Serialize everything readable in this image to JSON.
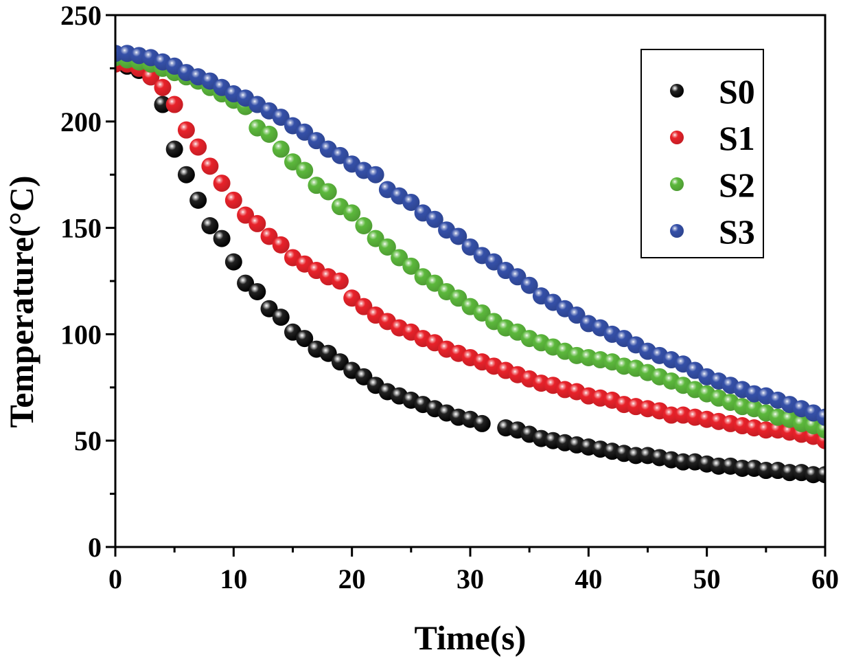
{
  "chart_data": {
    "type": "scatter",
    "title": "",
    "xlabel": "Time(s)",
    "ylabel": "Temperature(°C)",
    "xlim": [
      0,
      60
    ],
    "ylim": [
      0,
      250
    ],
    "xticks": [
      0,
      10,
      20,
      30,
      40,
      50,
      60
    ],
    "xticks_minor": [
      5,
      15,
      25,
      35,
      45,
      55
    ],
    "yticks": [
      0,
      50,
      100,
      150,
      200,
      250
    ],
    "yticks_minor": [
      25,
      75,
      125,
      175,
      225
    ],
    "grid": false,
    "legend_position": "top-right",
    "series": [
      {
        "name": "S0",
        "color": "#000000",
        "x": [
          0,
          1,
          2,
          3,
          4,
          5,
          6,
          7,
          8,
          9,
          10,
          11,
          12,
          13,
          14,
          15,
          16,
          17,
          18,
          19,
          20,
          21,
          22,
          23,
          24,
          25,
          26,
          27,
          28,
          29,
          30,
          31,
          33,
          34,
          35,
          36,
          37,
          38,
          39,
          40,
          41,
          42,
          43,
          44,
          45,
          46,
          47,
          48,
          49,
          50,
          51,
          52,
          53,
          54,
          55,
          56,
          57,
          58,
          59,
          60
        ],
        "y": [
          228,
          226,
          224,
          221,
          208,
          187,
          175,
          163,
          151,
          145,
          134,
          124,
          120,
          112,
          108,
          101,
          98,
          93,
          91,
          87,
          83,
          80,
          76,
          73,
          71,
          69,
          67,
          65,
          63,
          61,
          60,
          58,
          56,
          55,
          53,
          51,
          50,
          49,
          48,
          47,
          46,
          45,
          44,
          43,
          43,
          42,
          41,
          40,
          40,
          39,
          38,
          38,
          37,
          37,
          36,
          36,
          35,
          35,
          34,
          34
        ]
      },
      {
        "name": "S1",
        "color": "#e8222a",
        "x": [
          0,
          1,
          2,
          3,
          4,
          5,
          6,
          7,
          8,
          9,
          10,
          11,
          12,
          13,
          14,
          15,
          16,
          17,
          18,
          19,
          20,
          21,
          22,
          23,
          24,
          25,
          26,
          27,
          28,
          29,
          30,
          31,
          32,
          33,
          34,
          35,
          36,
          37,
          38,
          39,
          40,
          41,
          42,
          43,
          44,
          45,
          46,
          47,
          48,
          49,
          50,
          51,
          52,
          53,
          54,
          55,
          56,
          57,
          58,
          59,
          60
        ],
        "y": [
          227,
          227,
          225,
          221,
          216,
          208,
          196,
          188,
          179,
          171,
          163,
          156,
          152,
          146,
          142,
          136,
          133,
          130,
          127,
          125,
          117,
          113,
          109,
          106,
          103,
          101,
          98,
          96,
          93,
          91,
          89,
          87,
          85,
          83,
          81,
          79,
          77,
          76,
          74,
          73,
          71,
          70,
          69,
          67,
          66,
          65,
          64,
          62,
          62,
          61,
          60,
          59,
          58,
          57,
          56,
          55,
          55,
          54,
          53,
          52,
          50
        ]
      },
      {
        "name": "S2",
        "color": "#5cb83c",
        "x": [
          0,
          1,
          2,
          3,
          4,
          5,
          6,
          7,
          8,
          9,
          10,
          11,
          12,
          13,
          14,
          15,
          16,
          17,
          18,
          19,
          20,
          21,
          22,
          23,
          24,
          25,
          26,
          27,
          28,
          29,
          30,
          31,
          32,
          33,
          34,
          35,
          36,
          37,
          38,
          39,
          40,
          41,
          42,
          43,
          44,
          45,
          46,
          47,
          48,
          49,
          50,
          51,
          52,
          53,
          54,
          55,
          56,
          57,
          58,
          59,
          60
        ],
        "y": [
          230,
          229,
          228,
          227,
          225,
          223,
          221,
          219,
          216,
          213,
          210,
          207,
          197,
          194,
          187,
          181,
          177,
          170,
          167,
          160,
          157,
          151,
          145,
          141,
          136,
          132,
          127,
          124,
          120,
          117,
          113,
          110,
          106,
          103,
          101,
          98,
          96,
          94,
          92,
          90,
          89,
          88,
          87,
          85,
          84,
          82,
          80,
          78,
          76,
          74,
          72,
          70,
          68,
          66,
          65,
          63,
          61,
          60,
          58,
          57,
          55
        ]
      },
      {
        "name": "S3",
        "color": "#3550a8",
        "x": [
          0,
          1,
          2,
          3,
          4,
          5,
          6,
          7,
          8,
          9,
          10,
          11,
          12,
          13,
          14,
          15,
          16,
          17,
          18,
          19,
          20,
          21,
          22,
          23,
          24,
          25,
          26,
          27,
          28,
          29,
          30,
          31,
          32,
          33,
          34,
          35,
          36,
          37,
          38,
          39,
          40,
          41,
          42,
          43,
          44,
          45,
          46,
          47,
          48,
          49,
          50,
          51,
          52,
          53,
          54,
          55,
          56,
          57,
          58,
          59,
          60
        ],
        "y": [
          232,
          232,
          231,
          230,
          228,
          226,
          223,
          221,
          219,
          216,
          213,
          211,
          208,
          205,
          202,
          198,
          195,
          191,
          187,
          184,
          180,
          177,
          175,
          168,
          165,
          162,
          157,
          154,
          149,
          146,
          141,
          137,
          134,
          130,
          127,
          123,
          118,
          115,
          112,
          109,
          105,
          103,
          100,
          98,
          95,
          92,
          90,
          88,
          86,
          83,
          80,
          78,
          76,
          74,
          72,
          71,
          69,
          67,
          65,
          63,
          61
        ]
      }
    ]
  }
}
